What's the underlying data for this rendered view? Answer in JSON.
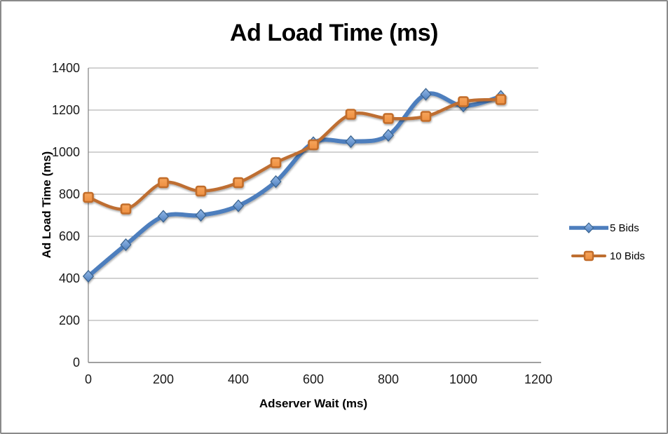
{
  "frame": {
    "background": "#FFFFFF",
    "border_color": "#8A8A8A"
  },
  "chart_data": {
    "type": "line",
    "title": "Ad Load Time (ms)",
    "xlabel": "Adserver Wait (ms)",
    "ylabel": "Ad Load Time (ms)",
    "x": [
      0,
      100,
      200,
      300,
      400,
      500,
      600,
      700,
      800,
      900,
      1000,
      1100
    ],
    "series": [
      {
        "name": "5 Bids",
        "marker": "diamond",
        "line_color": "#4D7EBD",
        "line_width": 6,
        "marker_fill_top": "#93B9E8",
        "marker_fill_bottom": "#4E7FBE",
        "marker_stroke": "#3A648F",
        "values": [
          410,
          560,
          695,
          700,
          745,
          860,
          1045,
          1050,
          1080,
          1275,
          1220,
          1265
        ]
      },
      {
        "name": "10 Bids",
        "marker": "square",
        "line_color": "#BE6E30",
        "line_width": 4.5,
        "marker_fill_top": "#F6A55C",
        "marker_fill_bottom": "#EE8F40",
        "marker_stroke": "#C26D2B",
        "values": [
          785,
          730,
          855,
          815,
          855,
          950,
          1035,
          1180,
          1160,
          1170,
          1240,
          1250
        ]
      }
    ],
    "xlim": [
      0,
      1200
    ],
    "ylim": [
      0,
      1400
    ],
    "x_ticks": [
      0,
      200,
      400,
      600,
      800,
      1000,
      1200
    ],
    "y_ticks": [
      0,
      200,
      400,
      600,
      800,
      1000,
      1200,
      1400
    ],
    "grid": "horizontal",
    "gridline_color": "#A4A4A4",
    "axis_line_color": "#808080",
    "legend_position": "right",
    "smooth_lines": true
  }
}
